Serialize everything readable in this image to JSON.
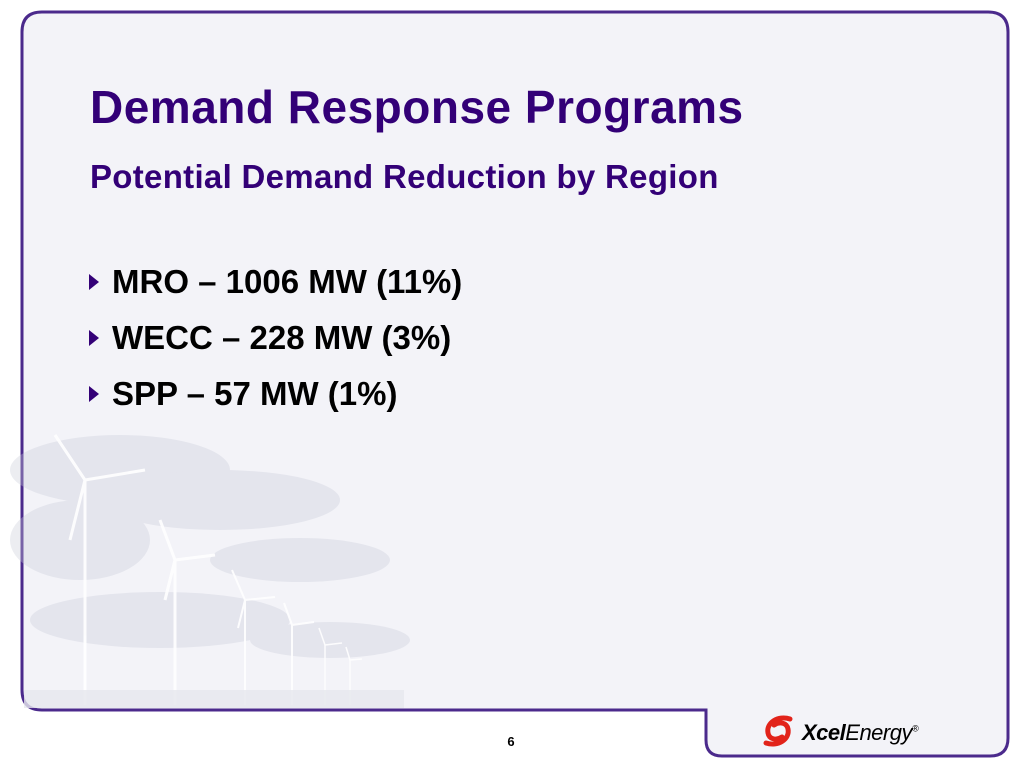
{
  "slide": {
    "title": "Demand Response Programs",
    "subtitle": "Potential Demand Reduction by Region",
    "bullets": [
      {
        "text": "MRO – 1006 MW (11%)",
        "icon": "triangle-bullet-icon"
      },
      {
        "text": "WECC – 228 MW (3%)",
        "icon": "triangle-bullet-icon"
      },
      {
        "text": "SPP – 57 MW (1%)",
        "icon": "triangle-bullet-icon"
      }
    ],
    "page_number": "6"
  },
  "branding": {
    "logo_text_bold": "Xcel",
    "logo_text_regular": "Energy",
    "logo_registered": "®",
    "logo_icon": "xcel-swirl-icon"
  },
  "colors": {
    "title": "#330077",
    "frame_border": "#4b2a8c",
    "background": "#f3f3f8",
    "logo_red": "#e2231a"
  }
}
